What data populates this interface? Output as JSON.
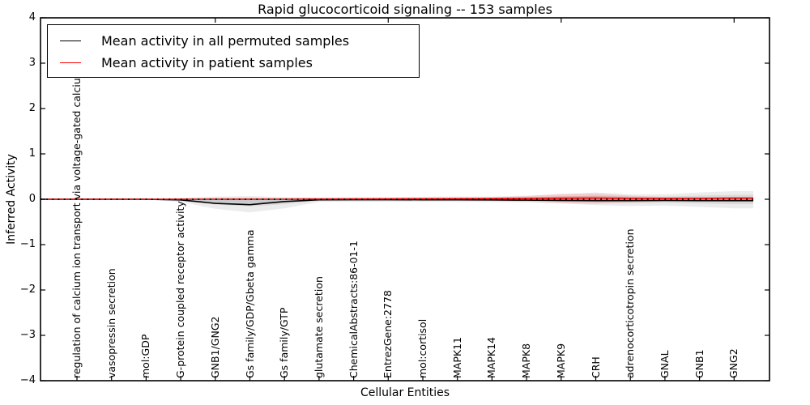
{
  "title": "Rapid glucocorticoid signaling -- 153 samples",
  "legend": {
    "items": [
      {
        "label": "Mean activity in all permuted samples",
        "color": "#000000"
      },
      {
        "label": "Mean activity in patient samples",
        "color": "#ff0000"
      }
    ]
  },
  "axes": {
    "ylabel": "Inferred Activity",
    "xlabel": "Cellular Entities",
    "ytick_labels": [
      "4",
      "3",
      "2",
      "1",
      "0",
      "−1",
      "−2",
      "−3",
      "−4"
    ]
  },
  "chart_data": {
    "type": "line",
    "title": "Rapid glucocorticoid signaling -- 153 samples",
    "xlabel": "Cellular Entities",
    "ylabel": "Inferred Activity",
    "ylim": [
      -4,
      4
    ],
    "yticks": [
      4,
      3,
      2,
      1,
      0,
      -1,
      -2,
      -3,
      -4
    ],
    "grid": false,
    "legend_position": "upper left",
    "top_ticks_at_indices": [
      4,
      9,
      14,
      19
    ],
    "x_categories": [
      "regulation of calcium ion transport via voltage-gated calcium channel",
      "vasopressin secretion",
      "mol:GDP",
      "G-protein coupled receptor activity",
      "GNB1/GNG2",
      "Gs family/GDP/Gbeta gamma",
      "Gs family/GTP",
      "glutamate secretion",
      "ChemicalAbstracts:86-01-1",
      "EntrezGene:2778",
      "mol:cortisol",
      "MAPK11",
      "MAPK14",
      "MAPK8",
      "MAPK9",
      "CRH",
      "adrenocorticotropin secretion",
      "GNAL",
      "GNB1",
      "GNG2"
    ],
    "series": [
      {
        "name": "Mean activity in all permuted samples",
        "color": "#000000",
        "style": "solid",
        "values": [
          0,
          0,
          0,
          -0.015,
          -0.09,
          -0.12,
          -0.05,
          -0.012,
          -0.01,
          -0.01,
          -0.012,
          -0.012,
          -0.015,
          -0.02,
          -0.025,
          -0.03,
          -0.03,
          -0.027,
          -0.03,
          -0.03
        ]
      },
      {
        "name": "Mean activity in patient samples",
        "color": "#ff0000",
        "style": "solid",
        "values": [
          0,
          0,
          0,
          0,
          0,
          0,
          0,
          0.004,
          0.005,
          0.008,
          0.01,
          0.012,
          0.015,
          0.02,
          0.024,
          0.027,
          0.02,
          0.016,
          0.02,
          0.026
        ]
      }
    ],
    "bands": [
      {
        "name": "permuted-samples-std-band",
        "color": "#000000",
        "opacity": 0.075,
        "upper": [
          0.01,
          0.01,
          0.012,
          0.03,
          0.06,
          0.07,
          0.05,
          0.045,
          0.05,
          0.05,
          0.055,
          0.06,
          0.06,
          0.08,
          0.11,
          0.15,
          0.11,
          0.11,
          0.15,
          0.18
        ],
        "lower": [
          -0.01,
          -0.01,
          -0.012,
          -0.06,
          -0.21,
          -0.29,
          -0.2,
          -0.06,
          -0.06,
          -0.06,
          -0.06,
          -0.06,
          -0.065,
          -0.07,
          -0.09,
          -0.13,
          -0.15,
          -0.14,
          -0.17,
          -0.2
        ]
      },
      {
        "name": "patient-samples-std-band",
        "color": "#ff0000",
        "opacity": 0.12,
        "upper": [
          0,
          0,
          0,
          0,
          0,
          0,
          0,
          0.005,
          0.008,
          0.012,
          0.02,
          0.03,
          0.04,
          0.07,
          0.12,
          0.13,
          0.08,
          0.05,
          0.04,
          0.03
        ],
        "lower": [
          0,
          0,
          0,
          0,
          0,
          0,
          0,
          -0.004,
          -0.006,
          -0.01,
          -0.018,
          -0.025,
          -0.035,
          -0.05,
          -0.09,
          -0.1,
          -0.07,
          -0.05,
          -0.04,
          -0.03
        ]
      }
    ],
    "zero_line": {
      "style": "dotted",
      "color": "#000000",
      "y": 0
    }
  }
}
